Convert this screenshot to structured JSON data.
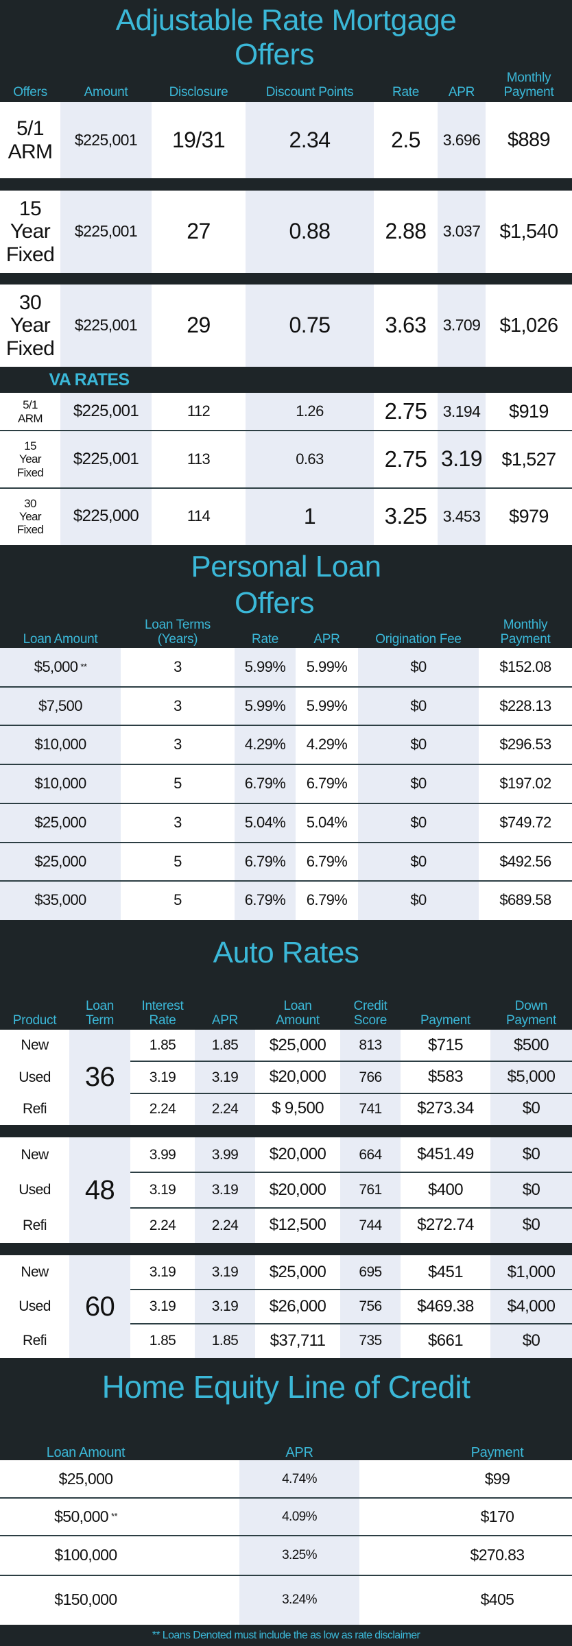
{
  "colors": {
    "accent": "#3bb8d8",
    "dark": "#1e2528",
    "shade": "#e8ecf5"
  },
  "mortgage": {
    "title_line1": "Adjustable Rate Mortgage",
    "title_line2": "Offers",
    "headers": [
      "Offers",
      "Amount",
      "Disclosure",
      "Discount Points",
      "Rate",
      "APR",
      "Monthly\nPayment"
    ],
    "rows": [
      {
        "offer": "5/1\nARM",
        "amount": "$225,001",
        "disclosure": "19/31",
        "points": "2.34",
        "rate": "2.5",
        "apr": "3.696",
        "payment": "$889"
      },
      {
        "offer": "15\nYear\nFixed",
        "amount": "$225,001",
        "disclosure": "27",
        "points": "0.88",
        "rate": "2.88",
        "apr": "3.037",
        "payment": "$1,540"
      },
      {
        "offer": "30\nYear\nFixed",
        "amount": "$225,001",
        "disclosure": "29",
        "points": "0.75",
        "rate": "3.63",
        "apr": "3.709",
        "payment": "$1,026"
      }
    ],
    "va_title": "VA RATES",
    "va_rows": [
      {
        "offer": "5/1\nARM",
        "amount": "$225,001",
        "disclosure": "112",
        "points": "1.26",
        "rate": "2.75",
        "apr": "3.194",
        "payment": "$919"
      },
      {
        "offer": "15\nYear\nFixed",
        "amount": "$225,001",
        "disclosure": "113",
        "points": "0.63",
        "rate": "2.75",
        "apr": "3.19",
        "payment": "$1,527"
      },
      {
        "offer": "30\nYear\nFixed",
        "amount": "$225,000",
        "disclosure": "114",
        "points": "1",
        "rate": "3.25",
        "apr": "3.453",
        "payment": "$979"
      }
    ]
  },
  "personal": {
    "title_line1": "Personal Loan",
    "title_line2": "Offers",
    "headers": [
      "Loan Amount",
      "Loan Terms\n(Years)",
      "Rate",
      "APR",
      "Origination Fee",
      "Monthly\nPayment"
    ],
    "rows": [
      {
        "amount": "$5,000",
        "note": "**",
        "term": "3",
        "rate": "5.99%",
        "apr": "5.99%",
        "fee": "$0",
        "payment": "$152.08"
      },
      {
        "amount": "$7,500",
        "term": "3",
        "rate": "5.99%",
        "apr": "5.99%",
        "fee": "$0",
        "payment": "$228.13"
      },
      {
        "amount": "$10,000",
        "term": "3",
        "rate": "4.29%",
        "apr": "4.29%",
        "fee": "$0",
        "payment": "$296.53"
      },
      {
        "amount": "$10,000",
        "term": "5",
        "rate": "6.79%",
        "apr": "6.79%",
        "fee": "$0",
        "payment": "$197.02"
      },
      {
        "amount": "$25,000",
        "term": "3",
        "rate": "5.04%",
        "apr": "5.04%",
        "fee": "$0",
        "payment": "$749.72"
      },
      {
        "amount": "$25,000",
        "term": "5",
        "rate": "6.79%",
        "apr": "6.79%",
        "fee": "$0",
        "payment": "$492.56"
      },
      {
        "amount": "$35,000",
        "term": "5",
        "rate": "6.79%",
        "apr": "6.79%",
        "fee": "$0",
        "payment": "$689.58"
      }
    ]
  },
  "auto": {
    "title": "Auto Rates",
    "headers": [
      "Product",
      "Loan\nTerm",
      "Interest\nRate",
      "APR",
      "Loan\nAmount",
      "Credit\nScore",
      "Payment",
      "Down\nPayment"
    ],
    "groups": [
      {
        "term": "36",
        "rows": [
          {
            "product": "New",
            "rate": "1.85",
            "apr": "1.85",
            "amount": "$25,000",
            "score": "813",
            "payment": "$715",
            "down": "$500"
          },
          {
            "product": "Used",
            "rate": "3.19",
            "apr": "3.19",
            "amount": "$20,000",
            "score": "766",
            "payment": "$583",
            "down": "$5,000"
          },
          {
            "product": "Refi",
            "rate": "2.24",
            "apr": "2.24",
            "amount": "$ 9,500",
            "score": "741",
            "payment": "$273.34",
            "down": "$0"
          }
        ]
      },
      {
        "term": "48",
        "rows": [
          {
            "product": "New",
            "rate": "3.99",
            "apr": "3.99",
            "amount": "$20,000",
            "score": "664",
            "payment": "$451.49",
            "down": "$0"
          },
          {
            "product": "Used",
            "rate": "3.19",
            "apr": "3.19",
            "amount": "$20,000",
            "score": "761",
            "payment": "$400",
            "down": "$0"
          },
          {
            "product": "Refi",
            "rate": "2.24",
            "apr": "2.24",
            "amount": "$12,500",
            "score": "744",
            "payment": "$272.74",
            "down": "$0"
          }
        ]
      },
      {
        "term": "60",
        "rows": [
          {
            "product": "New",
            "rate": "3.19",
            "apr": "3.19",
            "amount": "$25,000",
            "score": "695",
            "payment": "$451",
            "down": "$1,000"
          },
          {
            "product": "Used",
            "rate": "3.19",
            "apr": "3.19",
            "amount": "$26,000",
            "score": "756",
            "payment": "$469.38",
            "down": "$4,000"
          },
          {
            "product": "Refi",
            "rate": "1.85",
            "apr": "1.85",
            "amount": "$37,711",
            "score": "735",
            "payment": "$661",
            "down": "$0"
          }
        ]
      }
    ]
  },
  "heloc": {
    "title": "Home Equity Line of Credit",
    "headers": [
      "Loan Amount",
      "APR",
      "Payment"
    ],
    "rows": [
      {
        "amount": "$25,000",
        "apr": "4.74%",
        "payment": "$99"
      },
      {
        "amount": "$50,000",
        "note": "**",
        "apr": "4.09%",
        "payment": "$170"
      },
      {
        "amount": "$100,000",
        "apr": "3.25%",
        "payment": "$270.83"
      },
      {
        "amount": "$150,000",
        "apr": "3.24%",
        "payment": "$405"
      }
    ],
    "footnote": "** Loans Denoted must include the as low as rate disclaimer"
  }
}
